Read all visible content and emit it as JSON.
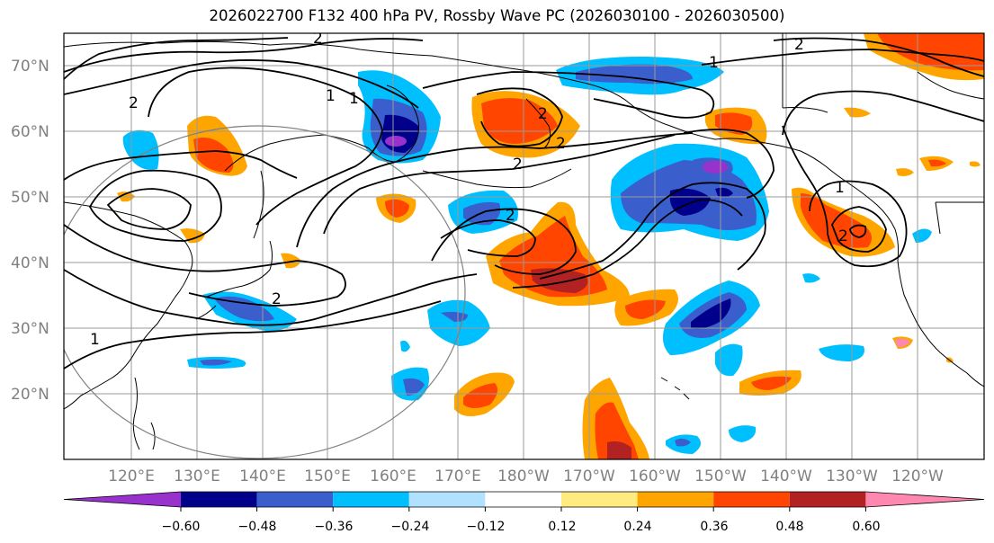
{
  "title": "2026022700 F132 400 hPa PV, Rossby Wave PC (2026030100 - 2026030500)",
  "lat_labels": [
    "70°N",
    "60°N",
    "50°N",
    "40°N",
    "30°N",
    "20°N"
  ],
  "lon_labels": [
    "120°E",
    "130°E",
    "140°E",
    "150°E",
    "160°E",
    "170°E",
    "180°W",
    "170°W",
    "160°W",
    "150°W",
    "140°W",
    "130°W",
    "120°W"
  ],
  "contour_labels": [
    "2",
    "2",
    "1",
    "1",
    "2",
    "2",
    "2",
    "2",
    "1",
    "1",
    "2",
    "2",
    "1"
  ],
  "colorbar": {
    "ticks": [
      "−0.60",
      "−0.48",
      "−0.36",
      "−0.24",
      "−0.12",
      "0.12",
      "0.24",
      "0.36",
      "0.48",
      "0.60"
    ],
    "colors": [
      "#9932cc",
      "#00008b",
      "#3a5fcd",
      "#00bfff",
      "#b0e2ff",
      "#ffffff",
      "#ffeb80",
      "#ffa500",
      "#ff4500",
      "#b22222",
      "#ff88b0"
    ]
  }
}
